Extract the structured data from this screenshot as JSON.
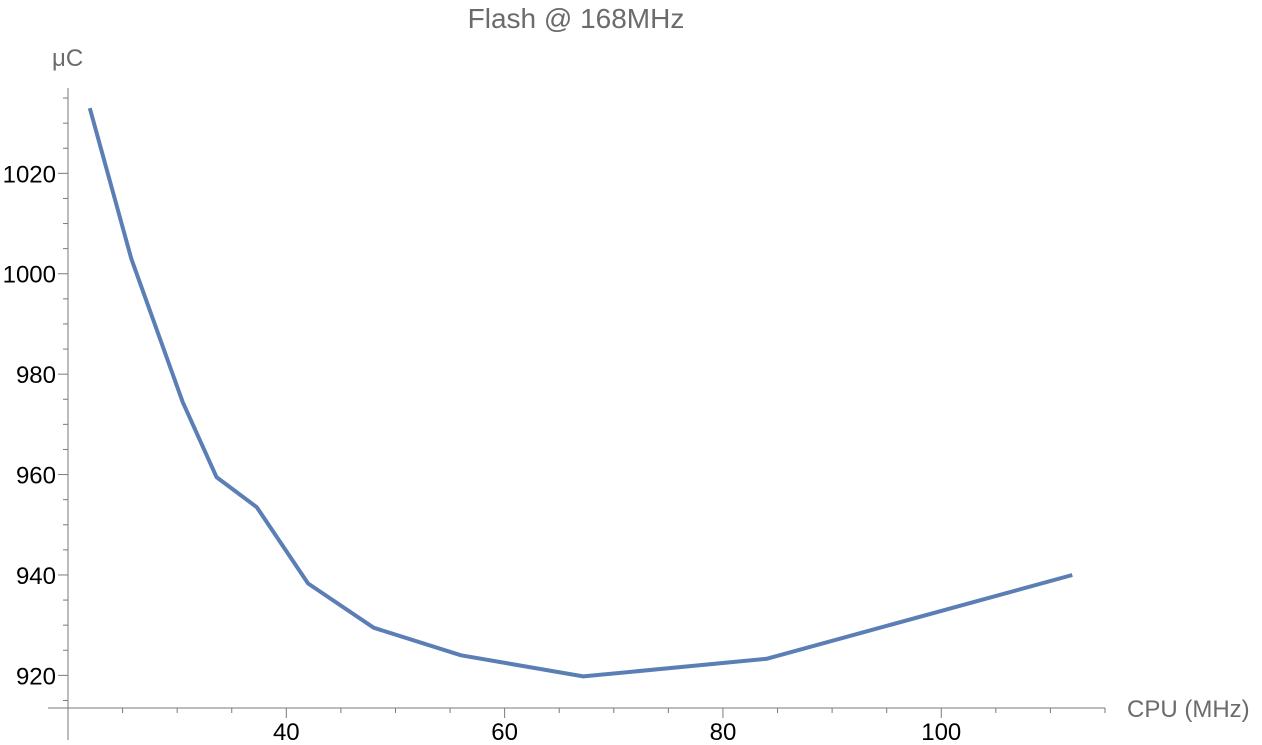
{
  "chart_data": {
    "type": "line",
    "title": "Flash @ 168MHz",
    "xlabel": "CPU (MHz)",
    "ylabel": "μC",
    "xlim": [
      20,
      115
    ],
    "ylim": [
      913.5,
      1037
    ],
    "x_ticks": [
      40,
      60,
      80,
      100
    ],
    "y_ticks": [
      920,
      940,
      960,
      980,
      1000,
      1020
    ],
    "x_minor_step": 5,
    "y_minor_step": 5,
    "grid": false,
    "colors": {
      "series": "#5b7fb5"
    },
    "series": [
      {
        "x": [
          22,
          25.8,
          30.5,
          33.6,
          37.3,
          42,
          48,
          56,
          67.2,
          84,
          112
        ],
        "y": [
          1033,
          1003,
          974.5,
          959.5,
          953.5,
          938.3,
          929.5,
          924,
          919.8,
          923.3,
          940
        ]
      }
    ]
  }
}
